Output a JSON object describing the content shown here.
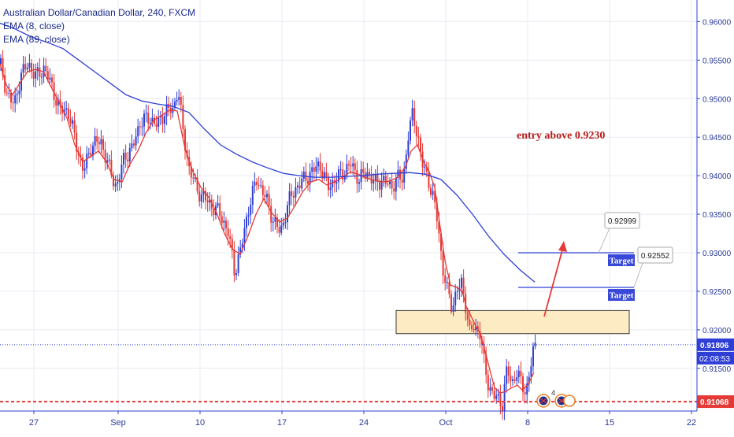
{
  "header": {
    "title": "Australian Dollar/Canadian Dollar, 240, FXCM",
    "ema_fast_label": "EMA (8, close)",
    "ema_slow_label": "EMA (89, close)"
  },
  "chart_data": {
    "type": "line",
    "title": "Australian Dollar/Canadian Dollar, 240, FXCM",
    "ylim": [
      0.9066,
      0.9628
    ],
    "y_ticks": [
      "0.96000",
      "0.95500",
      "0.95000",
      "0.94500",
      "0.94000",
      "0.93500",
      "0.93000",
      "0.92500",
      "0.92000",
      "0.91500"
    ],
    "x_ticks": [
      "27",
      "Sep",
      "10",
      "17",
      "24",
      "Oct",
      "8",
      "15",
      "22"
    ],
    "series": [
      {
        "name": "EMA (8, close)",
        "color": "#e53935",
        "points": [
          [
            0,
            0.9545
          ],
          [
            8,
            0.9518
          ],
          [
            16,
            0.9505
          ],
          [
            25,
            0.952
          ],
          [
            35,
            0.9535
          ],
          [
            45,
            0.9538
          ],
          [
            55,
            0.9535
          ],
          [
            65,
            0.9515
          ],
          [
            75,
            0.9495
          ],
          [
            85,
            0.9475
          ],
          [
            95,
            0.944
          ],
          [
            105,
            0.9418
          ],
          [
            115,
            0.9425
          ],
          [
            125,
            0.9432
          ],
          [
            135,
            0.9418
          ],
          [
            145,
            0.9395
          ],
          [
            155,
            0.9392
          ],
          [
            165,
            0.9415
          ],
          [
            175,
            0.9432
          ],
          [
            185,
            0.9455
          ],
          [
            195,
            0.9472
          ],
          [
            205,
            0.9478
          ],
          [
            215,
            0.9485
          ],
          [
            225,
            0.9484
          ],
          [
            235,
            0.9435
          ],
          [
            245,
            0.9405
          ],
          [
            255,
            0.9385
          ],
          [
            265,
            0.9372
          ],
          [
            275,
            0.9352
          ],
          [
            285,
            0.9325
          ],
          [
            295,
            0.9305
          ],
          [
            305,
            0.9298
          ],
          [
            315,
            0.9322
          ],
          [
            325,
            0.935
          ],
          [
            335,
            0.937
          ],
          [
            345,
            0.9352
          ],
          [
            355,
            0.934
          ],
          [
            365,
            0.9345
          ],
          [
            375,
            0.9362
          ],
          [
            385,
            0.938
          ],
          [
            395,
            0.9392
          ],
          [
            405,
            0.9395
          ],
          [
            415,
            0.9388
          ],
          [
            425,
            0.9392
          ],
          [
            435,
            0.9398
          ],
          [
            445,
            0.9405
          ],
          [
            455,
            0.9402
          ],
          [
            465,
            0.9397
          ],
          [
            475,
            0.9394
          ],
          [
            485,
            0.9392
          ],
          [
            495,
            0.9393
          ],
          [
            505,
            0.9398
          ],
          [
            515,
            0.9412
          ],
          [
            522,
            0.9432
          ],
          [
            530,
            0.944
          ],
          [
            538,
            0.9418
          ],
          [
            545,
            0.9405
          ],
          [
            552,
            0.9385
          ],
          [
            558,
            0.934
          ],
          [
            565,
            0.929
          ],
          [
            572,
            0.9258
          ],
          [
            580,
            0.9255
          ],
          [
            587,
            0.925
          ],
          [
            592,
            0.923
          ],
          [
            598,
            0.9218
          ],
          [
            604,
            0.9205
          ],
          [
            610,
            0.9195
          ],
          [
            616,
            0.9172
          ],
          [
            622,
            0.9148
          ],
          [
            628,
            0.9125
          ],
          [
            635,
            0.9118
          ],
          [
            642,
            0.912
          ],
          [
            650,
            0.9125
          ],
          [
            657,
            0.9128
          ],
          [
            663,
            0.9122
          ],
          [
            670,
            0.9128
          ],
          [
            678,
            0.9145
          ]
        ]
      },
      {
        "name": "EMA (89, close)",
        "color": "#2f3fd6",
        "points": [
          [
            0,
            0.9598
          ],
          [
            20,
            0.959
          ],
          [
            40,
            0.958
          ],
          [
            60,
            0.9573
          ],
          [
            80,
            0.9565
          ],
          [
            100,
            0.955
          ],
          [
            120,
            0.9535
          ],
          [
            140,
            0.952
          ],
          [
            160,
            0.9505
          ],
          [
            180,
            0.9497
          ],
          [
            200,
            0.9493
          ],
          [
            220,
            0.949
          ],
          [
            240,
            0.9482
          ],
          [
            260,
            0.946
          ],
          [
            280,
            0.944
          ],
          [
            300,
            0.9428
          ],
          [
            320,
            0.9418
          ],
          [
            340,
            0.941
          ],
          [
            360,
            0.9403
          ],
          [
            380,
            0.94
          ],
          [
            400,
            0.9398
          ],
          [
            420,
            0.9398
          ],
          [
            440,
            0.9399
          ],
          [
            460,
            0.94
          ],
          [
            480,
            0.9402
          ],
          [
            500,
            0.9403
          ],
          [
            520,
            0.9404
          ],
          [
            540,
            0.9402
          ],
          [
            560,
            0.9395
          ],
          [
            580,
            0.9375
          ],
          [
            600,
            0.935
          ],
          [
            620,
            0.9322
          ],
          [
            640,
            0.9298
          ],
          [
            660,
            0.9278
          ],
          [
            679,
            0.9262
          ]
        ]
      }
    ],
    "candles": {
      "up_color": "#2f3fd6",
      "down_color": "#e53935",
      "anchors": [
        [
          0,
          0.9545
        ],
        [
          8,
          0.951
        ],
        [
          18,
          0.949
        ],
        [
          26,
          0.953
        ],
        [
          36,
          0.9545
        ],
        [
          46,
          0.9528
        ],
        [
          56,
          0.954
        ],
        [
          66,
          0.9515
        ],
        [
          76,
          0.9485
        ],
        [
          86,
          0.9485
        ],
        [
          96,
          0.9445
        ],
        [
          106,
          0.9405
        ],
        [
          116,
          0.944
        ],
        [
          128,
          0.9445
        ],
        [
          140,
          0.9405
        ],
        [
          148,
          0.9385
        ],
        [
          158,
          0.9425
        ],
        [
          168,
          0.9435
        ],
        [
          178,
          0.947
        ],
        [
          190,
          0.9475
        ],
        [
          200,
          0.9465
        ],
        [
          210,
          0.9485
        ],
        [
          220,
          0.9485
        ],
        [
          226,
          0.9515
        ],
        [
          232,
          0.946
        ],
        [
          240,
          0.941
        ],
        [
          250,
          0.9382
        ],
        [
          260,
          0.937
        ],
        [
          270,
          0.936
        ],
        [
          280,
          0.935
        ],
        [
          290,
          0.9325
        ],
        [
          298,
          0.9275
        ],
        [
          306,
          0.9305
        ],
        [
          316,
          0.936
        ],
        [
          326,
          0.9395
        ],
        [
          336,
          0.9375
        ],
        [
          346,
          0.9345
        ],
        [
          356,
          0.9325
        ],
        [
          366,
          0.9365
        ],
        [
          376,
          0.9385
        ],
        [
          386,
          0.9395
        ],
        [
          396,
          0.9405
        ],
        [
          406,
          0.9415
        ],
        [
          416,
          0.9385
        ],
        [
          426,
          0.9395
        ],
        [
          436,
          0.9405
        ],
        [
          446,
          0.9415
        ],
        [
          456,
          0.9395
        ],
        [
          466,
          0.9405
        ],
        [
          476,
          0.939
        ],
        [
          486,
          0.9395
        ],
        [
          496,
          0.9385
        ],
        [
          506,
          0.9398
        ],
        [
          512,
          0.9395
        ],
        [
          518,
          0.945
        ],
        [
          524,
          0.948
        ],
        [
          530,
          0.9455
        ],
        [
          536,
          0.9415
        ],
        [
          544,
          0.9395
        ],
        [
          550,
          0.937
        ],
        [
          556,
          0.934
        ],
        [
          562,
          0.928
        ],
        [
          568,
          0.925
        ],
        [
          574,
          0.923
        ],
        [
          580,
          0.925
        ],
        [
          586,
          0.926
        ],
        [
          592,
          0.923
        ],
        [
          596,
          0.9195
        ],
        [
          602,
          0.9205
        ],
        [
          610,
          0.9195
        ],
        [
          614,
          0.916
        ],
        [
          620,
          0.913
        ],
        [
          626,
          0.9115
        ],
        [
          632,
          0.911
        ],
        [
          638,
          0.9105
        ],
        [
          644,
          0.915
        ],
        [
          650,
          0.913
        ],
        [
          656,
          0.9145
        ],
        [
          662,
          0.913
        ],
        [
          668,
          0.912
        ],
        [
          672,
          0.914
        ],
        [
          678,
          0.9178
        ],
        [
          681,
          0.9181
        ]
      ]
    },
    "annotations": {
      "note": "entry above 0.9230",
      "entry_zone": [
        0.9195,
        0.9225
      ],
      "target_1": {
        "label": "Target",
        "value": "0.92999",
        "price": 0.93
      },
      "target_2": {
        "label": "Target",
        "value": "0.92552",
        "price": 0.9255
      },
      "current_price": "0.91806",
      "current_price_value": 0.91806,
      "countdown": "02:08:53",
      "support_price": "0.91068",
      "support_price_value": 0.91068,
      "event_count": "4"
    },
    "colors": {
      "axis": "#2f3fd6",
      "grid": "#e8ebf3",
      "zone_fill": "#fdebc4",
      "zone_border": "#3a3a3a",
      "target_fill": "#3848d8",
      "arrow": "#e53935",
      "note": "#b71c1c",
      "support": "#e53935"
    },
    "grid": true
  }
}
